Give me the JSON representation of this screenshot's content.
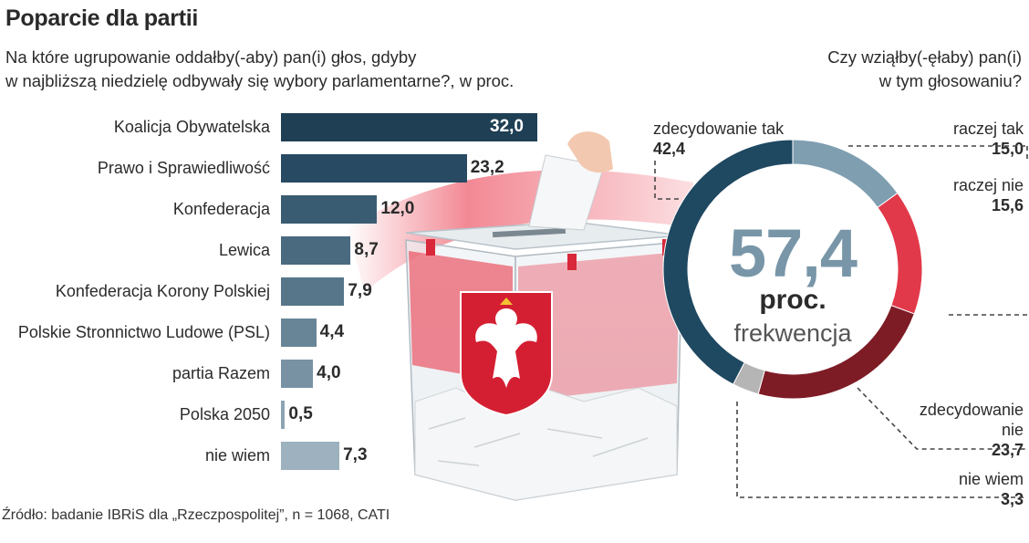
{
  "header": {
    "title": "Poparcie dla partii",
    "subtitle_line1": "Na które ugrupowanie oddałby(-aby) pan(i) głos, gdyby",
    "subtitle_line2": "w najbliższą niedzielę odbywały się wybory parlamentarne?, w proc.",
    "question_line1": "Czy wziąłby(-ęłaby) pan(i)",
    "question_line2": "w tym głosowaniu?"
  },
  "source": "Źródło: badanie IBRiS dla „Rzeczpospolitej”, n = 1068, CATI",
  "chart_data": [
    {
      "type": "bar",
      "orientation": "horizontal",
      "categories": [
        "Koalicja Obywatelska",
        "Prawo i Sprawiedliwość",
        "Konfederacja",
        "Lewica",
        "Konfederacja Korony Polskiej",
        "Polskie Stronnictwo Ludowe (PSL)",
        "partia Razem",
        "Polska 2050",
        "nie wiem"
      ],
      "values": [
        32.0,
        23.2,
        12.0,
        8.7,
        7.9,
        4.4,
        4.0,
        0.5,
        7.3
      ],
      "value_labels": [
        "32,0",
        "23,2",
        "12,0",
        "8,7",
        "7,9",
        "4,4",
        "4,0",
        "0,5",
        "7,3"
      ],
      "colors": [
        "#1f3f55",
        "#284a62",
        "#3a5c72",
        "#4a6a80",
        "#577689",
        "#678597",
        "#7892a3",
        "#8da4b3",
        "#9db1bf"
      ],
      "xlim": [
        0,
        32.0
      ]
    },
    {
      "type": "pie",
      "donut": true,
      "center_value": "57,4",
      "center_unit": "proc.",
      "center_label": "frekwencja",
      "slices": [
        {
          "label": "raczej tak",
          "value": 15.0,
          "value_label": "15,0",
          "color": "#7f9fb1"
        },
        {
          "label": "raczej nie",
          "value": 15.6,
          "value_label": "15,6",
          "color": "#e2394a"
        },
        {
          "label": "zdecydowanie nie",
          "value": 23.7,
          "value_label": "23,7",
          "color": "#7e1c26"
        },
        {
          "label": "nie wiem",
          "value": 3.3,
          "value_label": "3,3",
          "color": "#b5b5b5"
        },
        {
          "label": "zdecydowanie tak",
          "value": 42.4,
          "value_label": "42,4",
          "color": "#1f4861"
        }
      ]
    }
  ]
}
